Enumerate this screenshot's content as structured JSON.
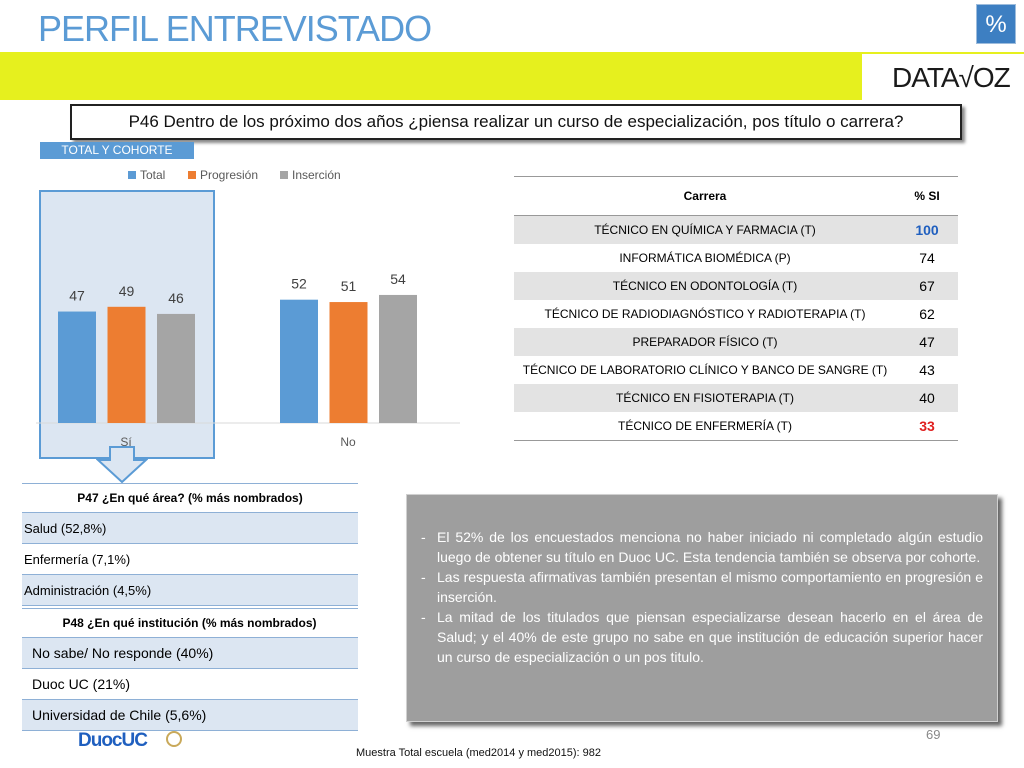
{
  "header": {
    "title": "PERFIL ENTREVISTADO",
    "percent_button": "%",
    "logo": "DATA√OZ"
  },
  "question": "P46 Dentro de los próximo dos años ¿piensa realizar un curso de especialización, pos título o carrera?",
  "cohort_tag": "TOTAL Y COHORTE",
  "colors": {
    "total": "#5b9bd5",
    "progresion": "#ed7d31",
    "insercion": "#a5a5a5",
    "accent_yellow": "#e6f01e"
  },
  "chart_data": {
    "type": "bar",
    "categories": [
      "Sí",
      "No"
    ],
    "series": [
      {
        "name": "Total",
        "values": [
          47,
          52
        ]
      },
      {
        "name": "Progresión",
        "values": [
          49,
          51
        ]
      },
      {
        "name": "Inserción",
        "values": [
          46,
          54
        ]
      }
    ],
    "ylim": [
      0,
      70
    ],
    "legend": "top",
    "grid": false,
    "highlighted_category": "Sí"
  },
  "career_table": {
    "headers": [
      "Carrera",
      "% SI"
    ],
    "rows": [
      {
        "carrera": "TÉCNICO EN QUÍMICA Y FARMACIA (T)",
        "si": "100"
      },
      {
        "carrera": "INFORMÁTICA BIOMÉDICA (P)",
        "si": "74"
      },
      {
        "carrera": "TÉCNICO EN ODONTOLOGÍA (T)",
        "si": "67"
      },
      {
        "carrera": "TÉCNICO DE RADIODIAGNÓSTICO Y RADIOTERAPIA (T)",
        "si": "62"
      },
      {
        "carrera": "PREPARADOR FÍSICO (T)",
        "si": "47"
      },
      {
        "carrera": "TÉCNICO DE LABORATORIO CLÍNICO Y BANCO DE SANGRE (T)",
        "si": "43"
      },
      {
        "carrera": "TÉCNICO EN FISIOTERAPIA (T)",
        "si": "40"
      },
      {
        "carrera": "TÉCNICO DE ENFERMERÍA (T)",
        "si": "33"
      }
    ]
  },
  "p47": {
    "header": "P47 ¿En qué área? (% más nombrados)",
    "items": [
      "Salud (52,8%)",
      "Enfermería (7,1%)",
      "Administración (4,5%)"
    ]
  },
  "p48": {
    "header": "P48 ¿En qué institución (% más nombrados)",
    "items": [
      "No sabe/ No responde (40%)",
      "Duoc UC (21%)",
      "Universidad de Chile (5,6%)"
    ]
  },
  "notes": [
    "El 52% de los encuestados menciona no haber iniciado ni completado algún estudio luego de obtener su título en Duoc UC. Esta tendencia también se observa por cohorte.",
    "Las respuesta afirmativas también presentan el mismo comportamiento en progresión e inserción.",
    "La mitad de los  titulados que piensan especializarse desean hacerlo en el área de Salud; y el 40% de este grupo no sabe en que institución de educación superior hacer un curso de especialización o un pos titulo."
  ],
  "page_number": "69",
  "footer": "Muestra Total escuela (med2014 y med2015): 982",
  "duoc_logo": "DuocUC"
}
